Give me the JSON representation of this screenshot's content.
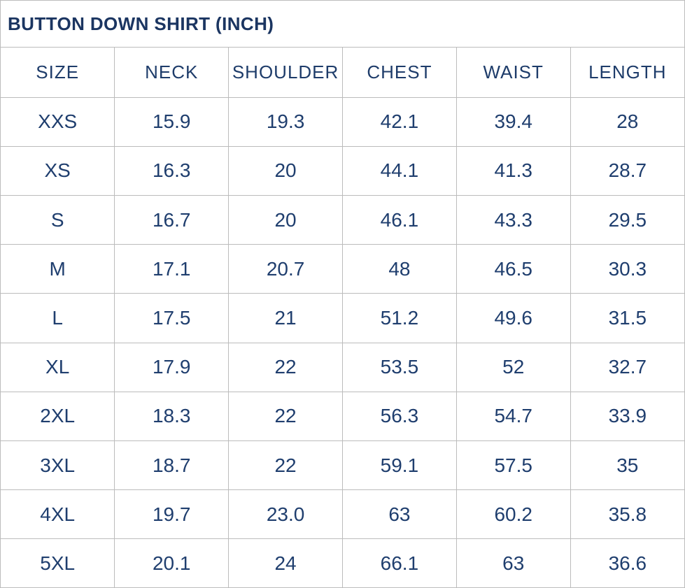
{
  "title": "BUTTON DOWN SHIRT (INCH)",
  "colors": {
    "title_text": "#1b3561",
    "header_text": "#1e3c6a",
    "cell_text": "#1f3e6e",
    "grid_border": "#bcbcbc",
    "background": "#ffffff"
  },
  "table": {
    "columns": [
      "SIZE",
      "NECK",
      "SHOULDER",
      "CHEST",
      "WAIST",
      "LENGTH"
    ],
    "rows": [
      [
        "XXS",
        "15.9",
        "19.3",
        "42.1",
        "39.4",
        "28"
      ],
      [
        "XS",
        "16.3",
        "20",
        "44.1",
        "41.3",
        "28.7"
      ],
      [
        "S",
        "16.7",
        "20",
        "46.1",
        "43.3",
        "29.5"
      ],
      [
        "M",
        "17.1",
        "20.7",
        "48",
        "46.5",
        "30.3"
      ],
      [
        "L",
        "17.5",
        "21",
        "51.2",
        "49.6",
        "31.5"
      ],
      [
        "XL",
        "17.9",
        "22",
        "53.5",
        "52",
        "32.7"
      ],
      [
        "2XL",
        "18.3",
        "22",
        "56.3",
        "54.7",
        "33.9"
      ],
      [
        "3XL",
        "18.7",
        "22",
        "59.1",
        "57.5",
        "35"
      ],
      [
        "4XL",
        "19.7",
        "23.0",
        "63",
        "60.2",
        "35.8"
      ],
      [
        "5XL",
        "20.1",
        "24",
        "66.1",
        "63",
        "36.6"
      ]
    ]
  },
  "chart_data": {
    "type": "table",
    "title": "BUTTON DOWN SHIRT (INCH)",
    "unit": "inch",
    "columns": [
      "SIZE",
      "NECK",
      "SHOULDER",
      "CHEST",
      "WAIST",
      "LENGTH"
    ],
    "rows": [
      {
        "size": "XXS",
        "neck": 15.9,
        "shoulder": 19.3,
        "chest": 42.1,
        "waist": 39.4,
        "length": 28
      },
      {
        "size": "XS",
        "neck": 16.3,
        "shoulder": 20,
        "chest": 44.1,
        "waist": 41.3,
        "length": 28.7
      },
      {
        "size": "S",
        "neck": 16.7,
        "shoulder": 20,
        "chest": 46.1,
        "waist": 43.3,
        "length": 29.5
      },
      {
        "size": "M",
        "neck": 17.1,
        "shoulder": 20.7,
        "chest": 48,
        "waist": 46.5,
        "length": 30.3
      },
      {
        "size": "L",
        "neck": 17.5,
        "shoulder": 21,
        "chest": 51.2,
        "waist": 49.6,
        "length": 31.5
      },
      {
        "size": "XL",
        "neck": 17.9,
        "shoulder": 22,
        "chest": 53.5,
        "waist": 52,
        "length": 32.7
      },
      {
        "size": "2XL",
        "neck": 18.3,
        "shoulder": 22,
        "chest": 56.3,
        "waist": 54.7,
        "length": 33.9
      },
      {
        "size": "3XL",
        "neck": 18.7,
        "shoulder": 22,
        "chest": 59.1,
        "waist": 57.5,
        "length": 35
      },
      {
        "size": "4XL",
        "neck": 19.7,
        "shoulder": 23.0,
        "chest": 63,
        "waist": 60.2,
        "length": 35.8
      },
      {
        "size": "5XL",
        "neck": 20.1,
        "shoulder": 24,
        "chest": 66.1,
        "waist": 63,
        "length": 36.6
      }
    ]
  }
}
